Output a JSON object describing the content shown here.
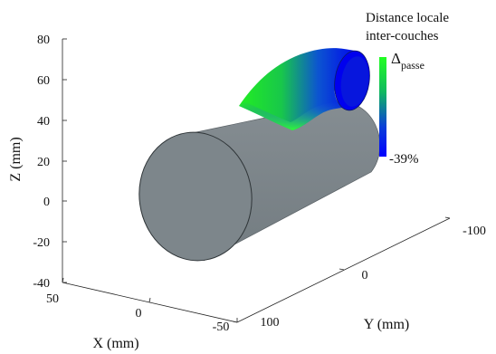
{
  "chart_data": {
    "type": "3d-surface",
    "xlabel": "X (mm)",
    "ylabel": "Y (mm)",
    "zlabel": "Z (mm)",
    "x_ticks": [
      "50",
      "0",
      "-50"
    ],
    "y_ticks": [
      "100",
      "0",
      "-100"
    ],
    "z_ticks": [
      "80",
      "60",
      "40",
      "20",
      "0",
      "-20",
      "-40"
    ],
    "xlim": [
      50,
      -50
    ],
    "ylim": [
      100,
      -100
    ],
    "zlim": [
      -40,
      80
    ],
    "colorbar": {
      "title_line1": "Distance locale",
      "title_line2": "inter-couches",
      "symbol": "Δ",
      "subscript": "passe",
      "min_label": "-39%",
      "colors": [
        "#00ff00",
        "#0000ff"
      ]
    },
    "substrate_color": "#7d868b",
    "deposit_colors": [
      "#00ff00",
      "#0000ff"
    ]
  }
}
